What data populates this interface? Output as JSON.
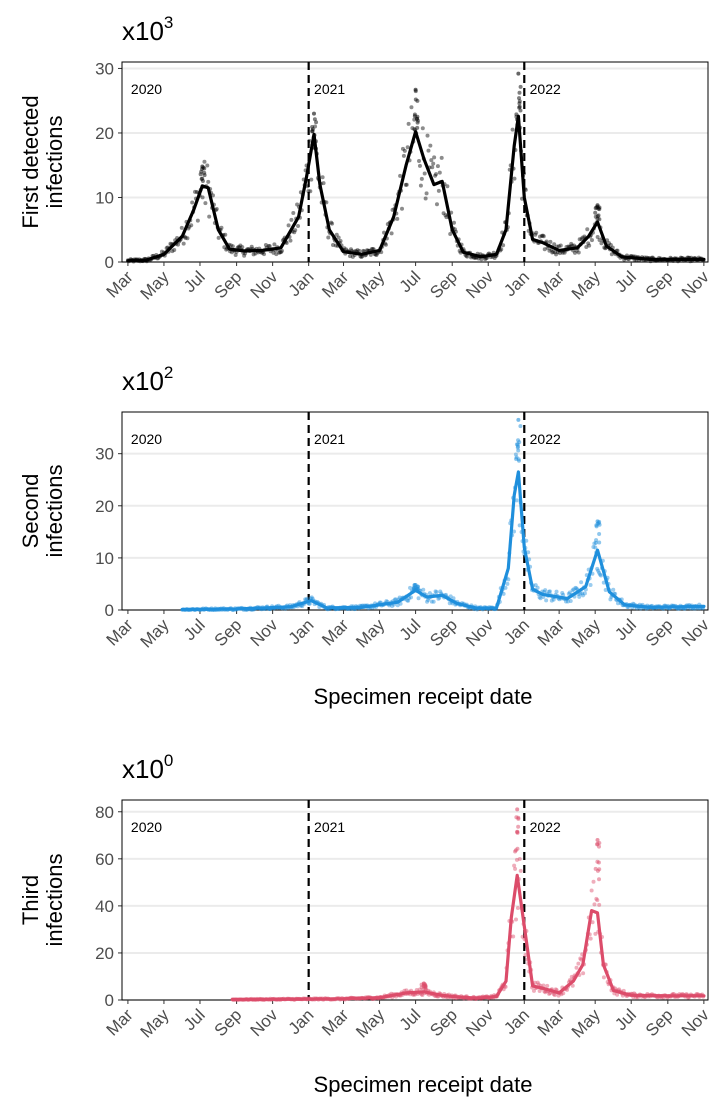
{
  "figure": {
    "panels": [
      {
        "scale_base": "x10",
        "scale_exp": "3",
        "ylabel_lines": [
          "First detected",
          "infections"
        ],
        "xtitle": ""
      },
      {
        "scale_base": "x10",
        "scale_exp": "2",
        "ylabel_lines": [
          "Second",
          "infections"
        ],
        "xtitle": "Specimen receipt date"
      },
      {
        "scale_base": "x10",
        "scale_exp": "0",
        "ylabel_lines": [
          "Third",
          "infections"
        ],
        "xtitle": "Specimen receipt date"
      }
    ]
  },
  "chart_data": [
    {
      "type": "line",
      "title": "",
      "xlabel": "",
      "ylabel": "First detected infections",
      "scale_note": "x10^3",
      "xlim": [
        "2020-02-20",
        "2022-11-08"
      ],
      "ylim": [
        0,
        31
      ],
      "yticks": [
        0,
        10,
        20,
        30
      ],
      "xticks": [
        {
          "date": "2020-03-01",
          "label": "Mar"
        },
        {
          "date": "2020-05-01",
          "label": "May"
        },
        {
          "date": "2020-07-01",
          "label": "Jul"
        },
        {
          "date": "2020-09-01",
          "label": "Sep"
        },
        {
          "date": "2020-11-01",
          "label": "Nov"
        },
        {
          "date": "2021-01-01",
          "label": "Jan"
        },
        {
          "date": "2021-03-01",
          "label": "Mar"
        },
        {
          "date": "2021-05-01",
          "label": "May"
        },
        {
          "date": "2021-07-01",
          "label": "Jul"
        },
        {
          "date": "2021-09-01",
          "label": "Sep"
        },
        {
          "date": "2021-11-01",
          "label": "Nov"
        },
        {
          "date": "2022-01-01",
          "label": "Jan"
        },
        {
          "date": "2022-03-01",
          "label": "Mar"
        },
        {
          "date": "2022-05-01",
          "label": "May"
        },
        {
          "date": "2022-07-01",
          "label": "Jul"
        },
        {
          "date": "2022-09-01",
          "label": "Sep"
        },
        {
          "date": "2022-11-01",
          "label": "Nov"
        }
      ],
      "vlines": [
        "2021-01-01",
        "2022-01-01"
      ],
      "year_labels": [
        {
          "date": "2020-03-01",
          "label": "2020"
        },
        {
          "date": "2021-01-05",
          "label": "2021"
        },
        {
          "date": "2022-01-05",
          "label": "2022"
        }
      ],
      "grid": "horizontal",
      "color": "#000000",
      "series": [
        {
          "smoothed": [
            [
              "2020-03-01",
              0.2
            ],
            [
              "2020-04-01",
              0.3
            ],
            [
              "2020-05-01",
              1.2
            ],
            [
              "2020-06-01",
              4
            ],
            [
              "2020-06-20",
              8
            ],
            [
              "2020-07-05",
              11.8
            ],
            [
              "2020-07-15",
              11.5
            ],
            [
              "2020-08-01",
              5
            ],
            [
              "2020-08-20",
              2
            ],
            [
              "2020-09-15",
              1.7
            ],
            [
              "2020-10-15",
              1.8
            ],
            [
              "2020-11-15",
              2.2
            ],
            [
              "2020-12-15",
              7
            ],
            [
              "2020-12-28",
              13
            ],
            [
              "2021-01-10",
              19.8
            ],
            [
              "2021-01-20",
              12
            ],
            [
              "2021-02-05",
              5
            ],
            [
              "2021-03-01",
              1.6
            ],
            [
              "2021-04-01",
              1.2
            ],
            [
              "2021-05-01",
              1.8
            ],
            [
              "2021-05-25",
              7
            ],
            [
              "2021-06-15",
              15
            ],
            [
              "2021-07-01",
              20.2
            ],
            [
              "2021-07-15",
              16
            ],
            [
              "2021-08-01",
              12
            ],
            [
              "2021-08-15",
              12.5
            ],
            [
              "2021-09-01",
              5
            ],
            [
              "2021-09-20",
              1.5
            ],
            [
              "2021-10-20",
              0.8
            ],
            [
              "2021-11-15",
              1.2
            ],
            [
              "2021-12-01",
              5
            ],
            [
              "2021-12-15",
              18
            ],
            [
              "2021-12-22",
              22.6
            ],
            [
              "2022-01-01",
              10
            ],
            [
              "2022-01-15",
              3.5
            ],
            [
              "2022-02-01",
              3
            ],
            [
              "2022-03-01",
              1.8
            ],
            [
              "2022-04-01",
              2.2
            ],
            [
              "2022-04-20",
              4
            ],
            [
              "2022-05-05",
              6.2
            ],
            [
              "2022-05-20",
              2.5
            ],
            [
              "2022-06-15",
              0.8
            ],
            [
              "2022-08-01",
              0.4
            ],
            [
              "2022-11-01",
              0.4
            ]
          ],
          "scatter_points_max": [
            [
              "2020-07-05",
              14.8
            ],
            [
              "2021-01-10",
              23
            ],
            [
              "2021-07-01",
              26.7
            ],
            [
              "2021-12-22",
              29.2
            ],
            [
              "2022-05-05",
              8.8
            ]
          ]
        }
      ]
    },
    {
      "type": "line",
      "title": "",
      "xlabel": "Specimen receipt date",
      "ylabel": "Second infections",
      "scale_note": "x10^2",
      "xlim": [
        "2020-02-20",
        "2022-11-08"
      ],
      "ylim": [
        0,
        38
      ],
      "yticks": [
        0,
        10,
        20,
        30
      ],
      "xticks": [
        {
          "date": "2020-03-01",
          "label": "Mar"
        },
        {
          "date": "2020-05-01",
          "label": "May"
        },
        {
          "date": "2020-07-01",
          "label": "Jul"
        },
        {
          "date": "2020-09-01",
          "label": "Sep"
        },
        {
          "date": "2020-11-01",
          "label": "Nov"
        },
        {
          "date": "2021-01-01",
          "label": "Jan"
        },
        {
          "date": "2021-03-01",
          "label": "Mar"
        },
        {
          "date": "2021-05-01",
          "label": "May"
        },
        {
          "date": "2021-07-01",
          "label": "Jul"
        },
        {
          "date": "2021-09-01",
          "label": "Sep"
        },
        {
          "date": "2021-11-01",
          "label": "Nov"
        },
        {
          "date": "2022-01-01",
          "label": "Jan"
        },
        {
          "date": "2022-03-01",
          "label": "Mar"
        },
        {
          "date": "2022-05-01",
          "label": "May"
        },
        {
          "date": "2022-07-01",
          "label": "Jul"
        },
        {
          "date": "2022-09-01",
          "label": "Sep"
        },
        {
          "date": "2022-11-01",
          "label": "Nov"
        }
      ],
      "vlines": [
        "2021-01-01",
        "2022-01-01"
      ],
      "year_labels": [
        {
          "date": "2020-03-01",
          "label": "2020"
        },
        {
          "date": "2021-01-05",
          "label": "2021"
        },
        {
          "date": "2022-01-05",
          "label": "2022"
        }
      ],
      "grid": "horizontal",
      "color": "#1f8fdc",
      "series": [
        {
          "smoothed": [
            [
              "2020-06-01",
              0.1
            ],
            [
              "2020-09-01",
              0.2
            ],
            [
              "2020-12-01",
              0.6
            ],
            [
              "2021-01-05",
              1.8
            ],
            [
              "2021-02-01",
              0.4
            ],
            [
              "2021-04-01",
              0.5
            ],
            [
              "2021-06-01",
              1.5
            ],
            [
              "2021-07-01",
              3.8
            ],
            [
              "2021-07-20",
              2.5
            ],
            [
              "2021-08-15",
              2.8
            ],
            [
              "2021-09-10",
              1.2
            ],
            [
              "2021-10-15",
              0.3
            ],
            [
              "2021-11-15",
              0.4
            ],
            [
              "2021-12-05",
              8
            ],
            [
              "2021-12-15",
              22
            ],
            [
              "2021-12-22",
              26.5
            ],
            [
              "2022-01-01",
              12
            ],
            [
              "2022-01-15",
              4
            ],
            [
              "2022-02-01",
              3
            ],
            [
              "2022-03-15",
              2.2
            ],
            [
              "2022-04-15",
              4.5
            ],
            [
              "2022-05-05",
              11.5
            ],
            [
              "2022-05-25",
              3.5
            ],
            [
              "2022-06-20",
              1
            ],
            [
              "2022-08-01",
              0.5
            ],
            [
              "2022-11-01",
              0.7
            ]
          ],
          "scatter_points_max": [
            [
              "2021-12-22",
              36.5
            ],
            [
              "2022-05-05",
              17
            ],
            [
              "2021-07-01",
              4.8
            ]
          ]
        }
      ]
    },
    {
      "type": "line",
      "title": "",
      "xlabel": "Specimen receipt date",
      "ylabel": "Third infections",
      "scale_note": "x10^0",
      "xlim": [
        "2020-02-20",
        "2022-11-08"
      ],
      "ylim": [
        0,
        85
      ],
      "yticks": [
        0,
        20,
        40,
        60,
        80
      ],
      "xticks": [
        {
          "date": "2020-03-01",
          "label": "Mar"
        },
        {
          "date": "2020-05-01",
          "label": "May"
        },
        {
          "date": "2020-07-01",
          "label": "Jul"
        },
        {
          "date": "2020-09-01",
          "label": "Sep"
        },
        {
          "date": "2020-11-01",
          "label": "Nov"
        },
        {
          "date": "2021-01-01",
          "label": "Jan"
        },
        {
          "date": "2021-03-01",
          "label": "Mar"
        },
        {
          "date": "2021-05-01",
          "label": "May"
        },
        {
          "date": "2021-07-01",
          "label": "Jul"
        },
        {
          "date": "2021-09-01",
          "label": "Sep"
        },
        {
          "date": "2021-11-01",
          "label": "Nov"
        },
        {
          "date": "2022-01-01",
          "label": "Jan"
        },
        {
          "date": "2022-03-01",
          "label": "Mar"
        },
        {
          "date": "2022-05-01",
          "label": "May"
        },
        {
          "date": "2022-07-01",
          "label": "Jul"
        },
        {
          "date": "2022-09-01",
          "label": "Sep"
        },
        {
          "date": "2022-11-01",
          "label": "Nov"
        }
      ],
      "vlines": [
        "2021-01-01",
        "2022-01-01"
      ],
      "year_labels": [
        {
          "date": "2020-03-01",
          "label": "2020"
        },
        {
          "date": "2021-01-05",
          "label": "2021"
        },
        {
          "date": "2022-01-05",
          "label": "2022"
        }
      ],
      "grid": "horizontal",
      "color": "#dc4c6a",
      "series": [
        {
          "smoothed": [
            [
              "2020-08-25",
              0.2
            ],
            [
              "2020-11-01",
              0.3
            ],
            [
              "2021-01-01",
              0.4
            ],
            [
              "2021-03-01",
              0.5
            ],
            [
              "2021-05-01",
              1
            ],
            [
              "2021-06-15",
              3
            ],
            [
              "2021-07-15",
              3.5
            ],
            [
              "2021-08-15",
              2
            ],
            [
              "2021-09-15",
              1.2
            ],
            [
              "2021-10-15",
              0.8
            ],
            [
              "2021-11-15",
              1.5
            ],
            [
              "2021-12-01",
              8
            ],
            [
              "2021-12-10",
              35
            ],
            [
              "2021-12-20",
              53
            ],
            [
              "2021-12-30",
              35
            ],
            [
              "2022-01-15",
              6
            ],
            [
              "2022-02-01",
              5
            ],
            [
              "2022-03-01",
              3
            ],
            [
              "2022-03-25",
              8
            ],
            [
              "2022-04-10",
              15
            ],
            [
              "2022-04-25",
              38
            ],
            [
              "2022-05-05",
              37
            ],
            [
              "2022-05-15",
              15
            ],
            [
              "2022-06-01",
              4
            ],
            [
              "2022-07-01",
              2
            ],
            [
              "2022-09-01",
              1.8
            ],
            [
              "2022-11-01",
              1.8
            ]
          ],
          "scatter_points_max": [
            [
              "2021-12-20",
              81
            ],
            [
              "2022-05-05",
              68
            ],
            [
              "2021-07-15",
              7
            ]
          ]
        }
      ]
    }
  ]
}
